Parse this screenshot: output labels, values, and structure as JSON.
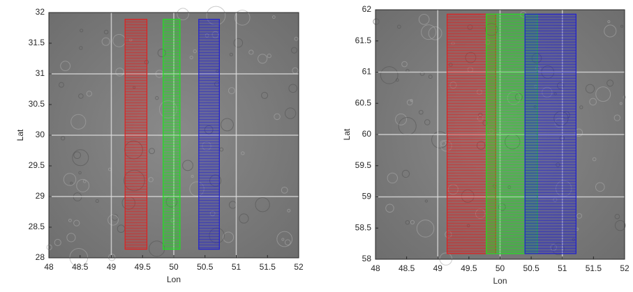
{
  "chart_data": [
    {
      "type": "footprint",
      "xlabel": "Lon",
      "ylabel": "Lat",
      "xlim": [
        48,
        52
      ],
      "ylim": [
        28,
        32
      ],
      "xticks": [
        48,
        48.5,
        49,
        49.5,
        50,
        50.5,
        51,
        51.5,
        52
      ],
      "yticks": [
        28,
        28.5,
        29,
        29.5,
        30,
        30.5,
        31,
        31.5,
        32
      ],
      "grid": true,
      "series": [
        {
          "color": "#e02020",
          "x": [
            49.22,
            49.57
          ],
          "values": [
            28.14,
            31.89
          ]
        },
        {
          "color": "#20e020",
          "x": [
            49.83,
            50.1
          ],
          "values": [
            28.14,
            31.89
          ]
        },
        {
          "color": "#2020d0",
          "x": [
            50.4,
            50.73
          ],
          "values": [
            28.14,
            31.89
          ]
        }
      ]
    },
    {
      "type": "footprint",
      "xlabel": "Lon",
      "ylabel": "Lat",
      "xlim": [
        48,
        52
      ],
      "ylim": [
        58,
        62
      ],
      "xticks": [
        48,
        48.5,
        49,
        49.5,
        50,
        50.5,
        51,
        51.5,
        52
      ],
      "yticks": [
        58,
        58.5,
        59,
        59.5,
        60,
        60.5,
        61,
        61.5,
        62
      ],
      "grid": true,
      "series": [
        {
          "color": "#e02020",
          "x": [
            49.15,
            49.93
          ],
          "values": [
            58.09,
            61.93
          ]
        },
        {
          "color": "#20e020",
          "x": [
            49.78,
            50.6
          ],
          "values": [
            58.09,
            61.93
          ]
        },
        {
          "color": "#2020d0",
          "x": [
            50.4,
            51.22
          ],
          "values": [
            58.09,
            61.93
          ]
        }
      ]
    }
  ]
}
